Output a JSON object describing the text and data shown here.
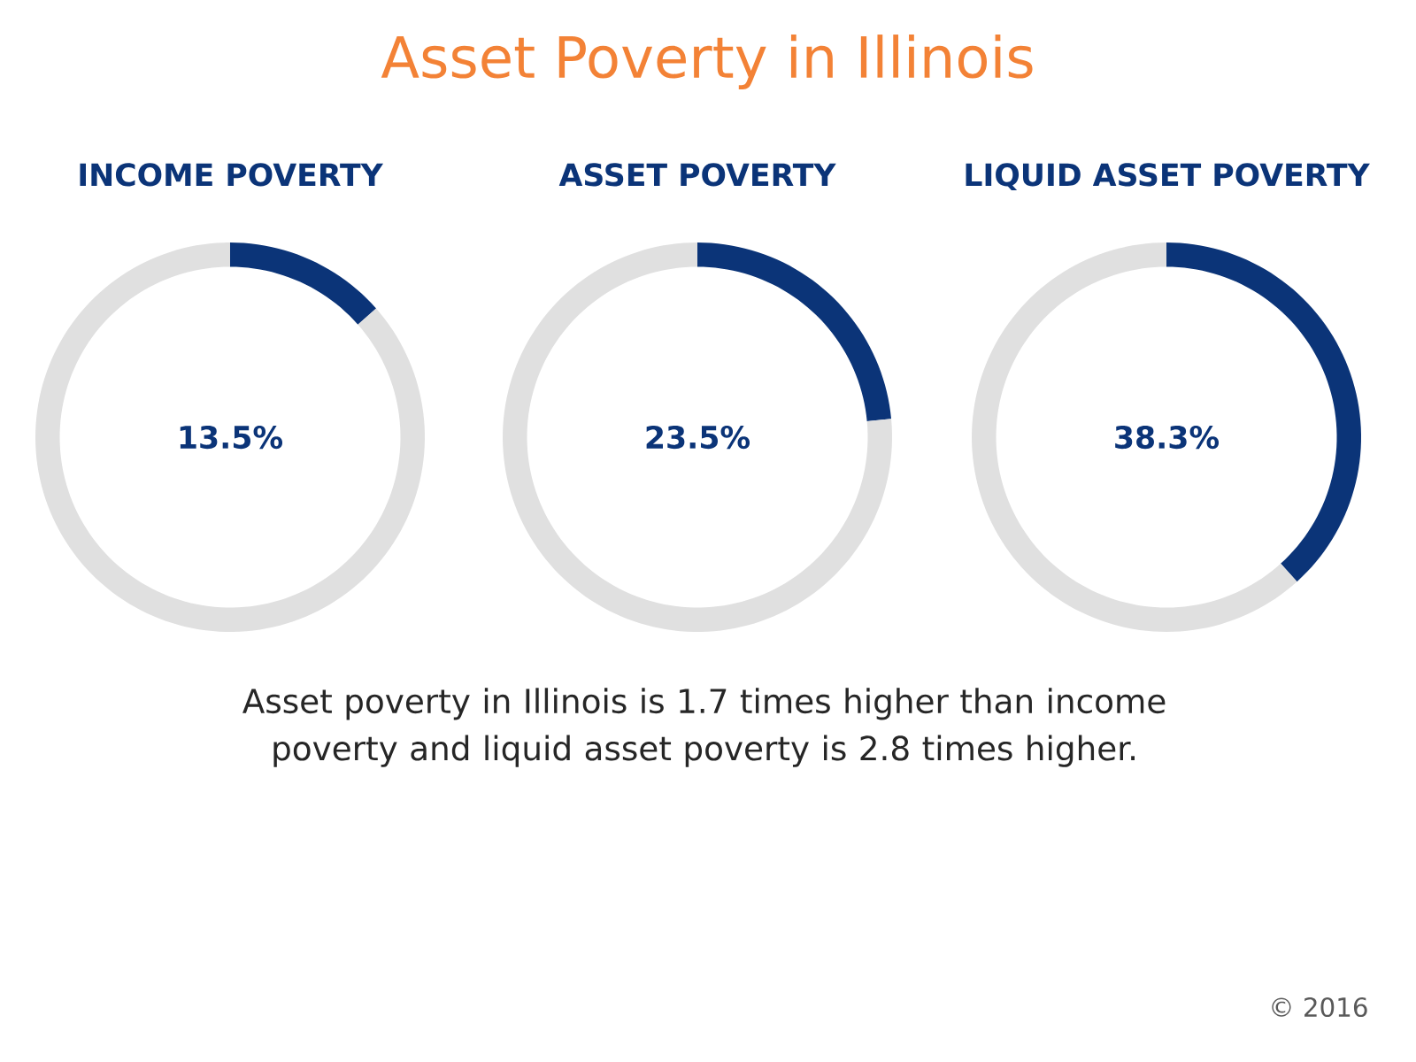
{
  "chart_data": [
    {
      "type": "other",
      "title": "Asset Poverty in Illinois",
      "annotations": [
        "Asset poverty in Illinois is 1.7 times higher than income poverty and liquid asset poverty is 2.8 times higher.",
        "© 2016"
      ]
    },
    {
      "type": "donut",
      "title": "INCOME POVERTY",
      "categories": [
        null,
        null
      ],
      "values": [
        13.5,
        86.5
      ],
      "colors": [
        "#0b3478",
        "#e0e0e0"
      ],
      "annotations": [
        "13.5%"
      ]
    },
    {
      "type": "donut",
      "title": "ASSET POVERTY",
      "categories": [
        null,
        null
      ],
      "values": [
        23.5,
        76.5
      ],
      "colors": [
        "#0b3478",
        "#e0e0e0"
      ],
      "annotations": [
        "23.5%"
      ]
    },
    {
      "type": "donut",
      "title": "LIQUID ASSET POVERTY",
      "categories": [
        null,
        null
      ],
      "values": [
        38.3,
        61.7
      ],
      "colors": [
        "#0b3478",
        "#e0e0e0"
      ],
      "annotations": [
        "38.3%"
      ]
    }
  ]
}
